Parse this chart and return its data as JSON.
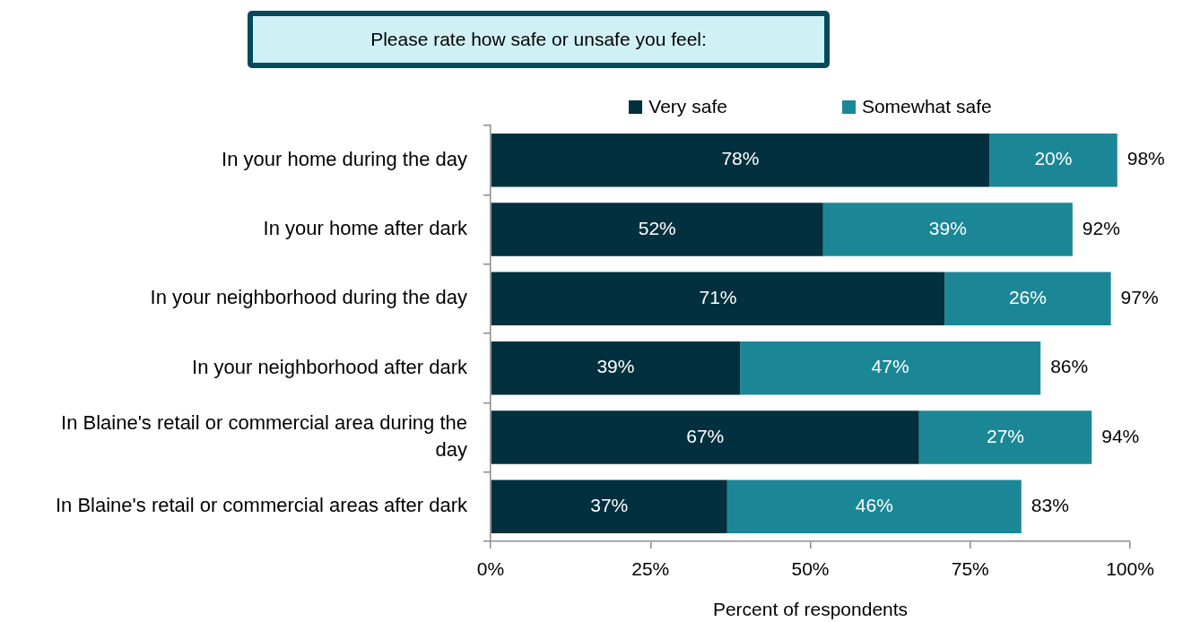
{
  "chart_data": {
    "type": "bar",
    "orientation": "horizontal",
    "stacked": true,
    "title": "Please rate how safe or unsafe you feel:",
    "xlabel": "Percent of respondents",
    "categories": [
      "In your home during the day",
      "In your home after dark",
      "In your neighborhood during the day",
      "In your neighborhood after dark",
      "In Blaine's retail or commercial area during the day",
      "In Blaine's retail or commercial areas after dark"
    ],
    "series": [
      {
        "name": "Very safe",
        "color": "#03303f",
        "values": [
          78,
          52,
          71,
          39,
          67,
          37
        ],
        "value_labels": [
          "78%",
          "52%",
          "71%",
          "39%",
          "67%",
          "37%"
        ]
      },
      {
        "name": "Somewhat safe",
        "color": "#1b8796",
        "values": [
          20,
          39,
          26,
          47,
          27,
          46
        ],
        "value_labels": [
          "20%",
          "39%",
          "26%",
          "47%",
          "27%",
          "46%"
        ]
      }
    ],
    "totals": [
      "98%",
      "92%",
      "97%",
      "86%",
      "94%",
      "83%"
    ],
    "xlim": [
      0,
      100
    ],
    "xticks": [
      {
        "value": 0,
        "label": "0%"
      },
      {
        "value": 25,
        "label": "25%"
      },
      {
        "value": 50,
        "label": "50%"
      },
      {
        "value": 75,
        "label": "75%"
      },
      {
        "value": 100,
        "label": "100%"
      }
    ],
    "legend": "top"
  }
}
